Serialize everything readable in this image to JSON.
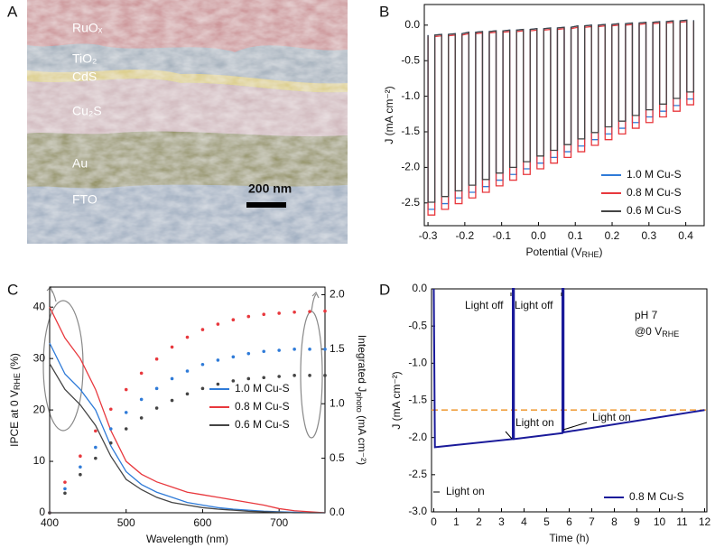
{
  "image_panel": {
    "panel_label": "A",
    "layers": [
      "RuOₓ",
      "TiO₂",
      "CdS",
      "Cu₂S",
      "Au",
      "FTO"
    ],
    "scale_bar": "200 nm"
  },
  "chart_data": [
    {
      "type": "line",
      "panel_label": "B",
      "y_label": "J (mA cm⁻²)",
      "x_label": [
        "Potential (V",
        "RHE",
        ")"
      ],
      "xlim": [
        -0.31,
        0.45
      ],
      "xticks": [
        -0.3,
        -0.2,
        -0.1,
        {
          "value": 0,
          "label": "0.0"
        },
        0.1,
        0.2,
        0.3,
        0.4
      ],
      "ylim": [
        -2.82,
        0.29
      ],
      "yticks": [
        {
          "value": 0,
          "label": "0.0"
        },
        -0.5,
        {
          "value": -1,
          "label": "-1.0"
        },
        -1.5,
        {
          "value": -2,
          "label": "-2.0"
        },
        -2.5
      ],
      "legend": "lower right",
      "x": [
        -0.3,
        -0.3,
        -0.2815,
        -0.2815,
        -0.263,
        -0.263,
        -0.2445,
        -0.2445,
        -0.226,
        -0.226,
        -0.2075,
        -0.2075,
        -0.189,
        -0.189,
        -0.1705,
        -0.1705,
        -0.152,
        -0.152,
        -0.1335,
        -0.1335,
        -0.115,
        -0.115,
        -0.0965,
        -0.0965,
        -0.078,
        -0.078,
        -0.0595,
        -0.0595,
        -0.041,
        -0.041,
        -0.0225,
        -0.0225,
        -0.004,
        -0.004,
        0.0145,
        0.0145,
        0.033,
        0.033,
        0.0515,
        0.0515,
        0.07,
        0.07,
        0.0885,
        0.0885,
        0.107,
        0.107,
        0.1255,
        0.1255,
        0.144,
        0.144,
        0.1625,
        0.1625,
        0.181,
        0.181,
        0.1995,
        0.1995,
        0.218,
        0.218,
        0.2365,
        0.2365,
        0.255,
        0.255,
        0.2735,
        0.2735,
        0.292,
        0.292,
        0.3105,
        0.3105,
        0.329,
        0.329,
        0.3475,
        0.3475,
        0.366,
        0.366,
        0.3845,
        0.3845,
        0.403,
        0.403,
        0.4215,
        0.4215
      ],
      "series": [
        {
          "name": "1.0 M Cu-S",
          "color": "#2f7bd8",
          "values": [
            -0.14,
            -2.59,
            -2.59,
            -0.14,
            -0.13,
            -2.51,
            -2.51,
            -0.13,
            -0.12,
            -2.43,
            -2.43,
            -0.12,
            -0.1,
            -2.35,
            -2.35,
            -0.1,
            -0.09,
            -2.27,
            -2.27,
            -0.09,
            -0.08,
            -2.18,
            -2.18,
            -0.08,
            -0.07,
            -2.1,
            -2.1,
            -0.07,
            -0.06,
            -2.02,
            -2.02,
            -0.06,
            -0.05,
            -1.94,
            -1.94,
            -0.05,
            -0.04,
            -1.86,
            -1.86,
            -0.04,
            -0.03,
            -1.78,
            -1.78,
            -0.03,
            -0.01,
            -1.7,
            -1.7,
            -0.01,
            0,
            -1.61,
            -1.61,
            0,
            0.01,
            -1.53,
            -1.53,
            0.01,
            0.02,
            -1.45,
            -1.45,
            0.02,
            0.03,
            -1.37,
            -1.37,
            0.03,
            0.04,
            -1.29,
            -1.29,
            0.04,
            0.05,
            -1.21,
            -1.21,
            0.05,
            0.06,
            -1.13,
            -1.13,
            0.06,
            0.07,
            -1.04,
            -1.04,
            0.07
          ]
        },
        {
          "name": "0.8 M Cu-S",
          "color": "#e8383d",
          "values": [
            -0.16,
            -2.67,
            -2.67,
            -0.16,
            -0.15,
            -2.59,
            -2.59,
            -0.15,
            -0.14,
            -2.51,
            -2.51,
            -0.14,
            -0.12,
            -2.43,
            -2.43,
            -0.12,
            -0.11,
            -2.35,
            -2.35,
            -0.11,
            -0.1,
            -2.26,
            -2.26,
            -0.1,
            -0.09,
            -2.18,
            -2.18,
            -0.09,
            -0.08,
            -2.1,
            -2.1,
            -0.08,
            -0.07,
            -2.02,
            -2.02,
            -0.07,
            -0.06,
            -1.94,
            -1.94,
            -0.06,
            -0.05,
            -1.86,
            -1.86,
            -0.05,
            -0.03,
            -1.78,
            -1.78,
            -0.03,
            -0.02,
            -1.69,
            -1.69,
            -0.02,
            -0.01,
            -1.61,
            -1.61,
            -0.01,
            0,
            -1.53,
            -1.53,
            0,
            0.01,
            -1.45,
            -1.45,
            0.01,
            0.02,
            -1.37,
            -1.37,
            0.02,
            0.03,
            -1.29,
            -1.29,
            0.03,
            0.04,
            -1.21,
            -1.21,
            0.04,
            0.05,
            -1.12,
            -1.12,
            0.05
          ]
        },
        {
          "name": "0.6 M Cu-S",
          "color": "#444444",
          "values": [
            -0.14,
            -2.49,
            -2.49,
            -0.14,
            -0.13,
            -2.41,
            -2.41,
            -0.13,
            -0.12,
            -2.33,
            -2.33,
            -0.12,
            -0.1,
            -2.25,
            -2.25,
            -0.1,
            -0.09,
            -2.17,
            -2.17,
            -0.09,
            -0.08,
            -2.08,
            -2.08,
            -0.08,
            -0.07,
            -2,
            -2,
            -0.07,
            -0.06,
            -1.92,
            -1.92,
            -0.06,
            -0.05,
            -1.84,
            -1.84,
            -0.05,
            -0.04,
            -1.76,
            -1.76,
            -0.04,
            -0.03,
            -1.68,
            -1.68,
            -0.03,
            -0.01,
            -1.6,
            -1.6,
            -0.01,
            0,
            -1.51,
            -1.51,
            0,
            0.01,
            -1.43,
            -1.43,
            0.01,
            0.02,
            -1.35,
            -1.35,
            0.02,
            0.03,
            -1.27,
            -1.27,
            0.03,
            0.04,
            -1.19,
            -1.19,
            0.04,
            0.05,
            -1.11,
            -1.11,
            0.05,
            0.06,
            -1.03,
            -1.03,
            0.06,
            0.07,
            -0.94,
            -0.94,
            0.07
          ]
        }
      ]
    },
    {
      "type": "line",
      "panel_label": "C",
      "y_label": [
        "IPCE at 0 V",
        "RHE",
        " (%)"
      ],
      "y2_label": [
        "Integrated J",
        "photo",
        " (mA cm⁻²)"
      ],
      "x_label": "Wavelength (nm)",
      "xlim": [
        400,
        760
      ],
      "xticks": [
        400,
        500,
        600,
        700
      ],
      "ylim": [
        0,
        43.9
      ],
      "yticks": [
        0,
        10,
        20,
        30,
        40
      ],
      "y2lim": [
        0,
        2.07
      ],
      "y2ticks": [
        {
          "value": 0,
          "label": "0.0"
        },
        0.5,
        {
          "value": 1,
          "label": "1.0"
        },
        1.5,
        {
          "value": 2,
          "label": "2.0"
        }
      ],
      "legend": "center right",
      "x": [
        400,
        420,
        440,
        460,
        480,
        500,
        520,
        540,
        560,
        580,
        600,
        620,
        640,
        660,
        680,
        700,
        720,
        740,
        760
      ],
      "series": [
        {
          "name": "1.0 M Cu-S",
          "color": "#2f7bd8",
          "values": [
            33,
            27,
            24,
            20,
            13,
            8,
            5.5,
            4,
            3,
            2,
            1.5,
            1,
            0.7,
            0.5,
            0.3,
            0.2,
            0.1,
            0,
            0
          ]
        },
        {
          "name": "0.8 M Cu-S",
          "color": "#e8383d",
          "values": [
            40,
            34,
            30,
            24,
            16,
            10,
            7.5,
            6,
            5,
            4,
            3.5,
            3,
            2.5,
            2,
            1.5,
            0.8,
            0.4,
            0.2,
            0
          ]
        },
        {
          "name": "0.6 M Cu-S",
          "color": "#444444",
          "values": [
            29,
            24,
            21,
            17,
            11,
            6.5,
            4.5,
            3,
            2,
            1.5,
            1,
            0.7,
            0.5,
            0.3,
            0.2,
            0.1,
            0,
            0,
            0
          ]
        },
        {
          "color": "#2f7bd8",
          "axis": "y2",
          "marker": "dot",
          "values": [
            0,
            0.22,
            0.42,
            0.6,
            0.77,
            0.92,
            1.04,
            1.14,
            1.23,
            1.3,
            1.36,
            1.4,
            1.43,
            1.46,
            1.48,
            1.49,
            1.5,
            1.5,
            1.5
          ]
        },
        {
          "color": "#e8383d",
          "axis": "y2",
          "marker": "dot",
          "values": [
            0,
            0.28,
            0.52,
            0.75,
            0.95,
            1.13,
            1.28,
            1.41,
            1.52,
            1.61,
            1.68,
            1.73,
            1.77,
            1.8,
            1.82,
            1.83,
            1.84,
            1.845,
            1.85
          ]
        },
        {
          "color": "#444444",
          "axis": "y2",
          "marker": "dot",
          "values": [
            0,
            0.18,
            0.35,
            0.5,
            0.64,
            0.77,
            0.87,
            0.96,
            1.03,
            1.09,
            1.14,
            1.18,
            1.21,
            1.23,
            1.24,
            1.25,
            1.26,
            1.26,
            1.26
          ]
        }
      ]
    },
    {
      "type": "line",
      "panel_label": "D",
      "y_label": "J (mA cm⁻²)",
      "x_label": "Time (h)",
      "xlim": [
        -0.1,
        12.1
      ],
      "xticks": [
        0,
        1,
        2,
        3,
        4,
        5,
        6,
        7,
        8,
        9,
        10,
        11,
        12
      ],
      "ylim": [
        -3,
        0
      ],
      "yticks": [
        {
          "value": 0,
          "label": "0.0"
        },
        -0.5,
        {
          "value": -1,
          "label": "-1.0"
        },
        -1.5,
        {
          "value": -2,
          "label": "-2.0"
        },
        -2.5,
        {
          "value": -3,
          "label": "-3.0"
        }
      ],
      "legend": "lower right",
      "reference_line": {
        "value": -1.63,
        "color": "#f0a040"
      },
      "annotations": [
        "Light off",
        "Light off",
        "Light on",
        "Light on",
        "Light on",
        "pH 7",
        [
          "@0 V",
          "RHE"
        ]
      ],
      "x": [
        0,
        0.05,
        3.5,
        3.5,
        3.55,
        3.55,
        5.7,
        5.7,
        5.75,
        5.75,
        12
      ],
      "series": [
        {
          "name": "0.8 M Cu-S",
          "color": "#1a1a9a",
          "values": [
            0,
            -2.13,
            -2.02,
            0,
            0,
            -2.02,
            -1.94,
            0,
            0,
            -1.93,
            -1.63
          ]
        }
      ]
    }
  ]
}
